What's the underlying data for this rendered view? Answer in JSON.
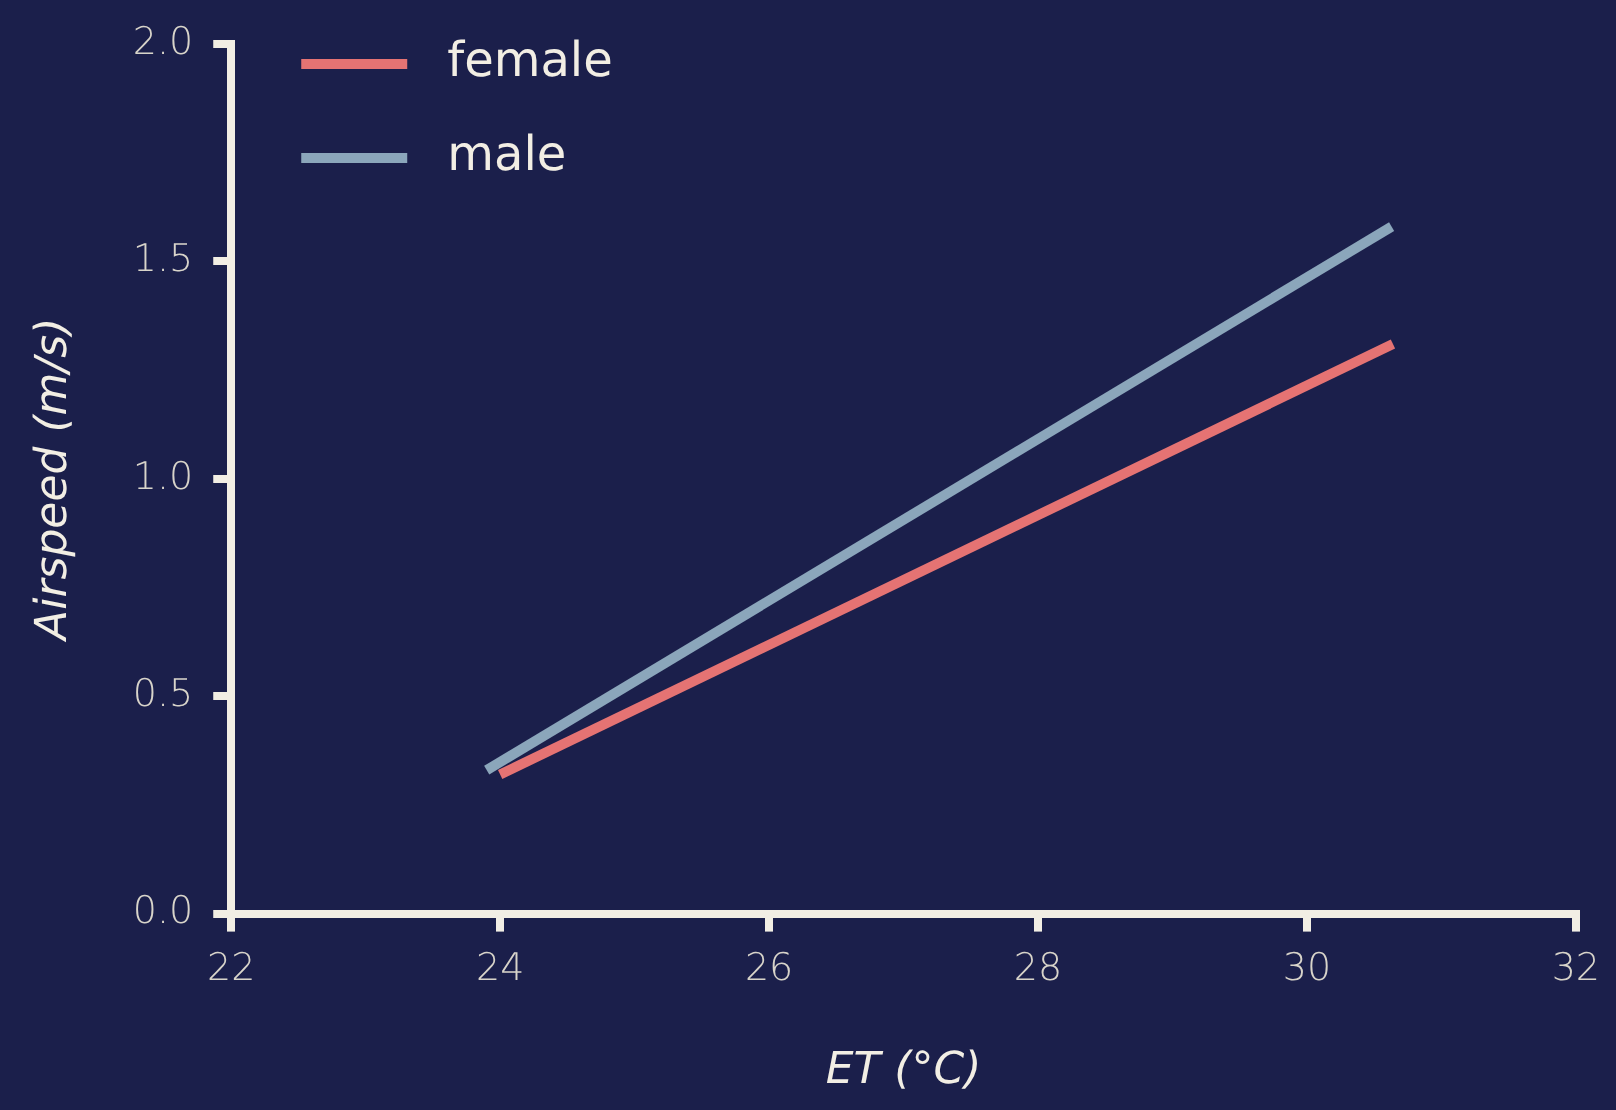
{
  "chart_data": {
    "type": "line",
    "xlabel": "ET (°C)",
    "ylabel": "Airspeed (m/s)",
    "xlim": [
      22,
      32
    ],
    "xticks": [
      22,
      24,
      26,
      28,
      30,
      32
    ],
    "ylim": [
      0,
      2
    ],
    "yticks": [
      {
        "value": 0,
        "label": "0.0"
      },
      0.5,
      {
        "value": 1,
        "label": "1.0"
      },
      1.5,
      {
        "value": 2,
        "label": "2.0"
      }
    ],
    "grid": false,
    "legend": "top left",
    "series": [
      {
        "name": "female",
        "color": "#e57373",
        "x": [
          24.0,
          30.64
        ],
        "values": [
          0.32,
          1.31
        ]
      },
      {
        "name": "male",
        "color": "#8ba6bb",
        "x": [
          23.9,
          30.63
        ],
        "values": [
          0.33,
          1.58
        ]
      }
    ]
  }
}
